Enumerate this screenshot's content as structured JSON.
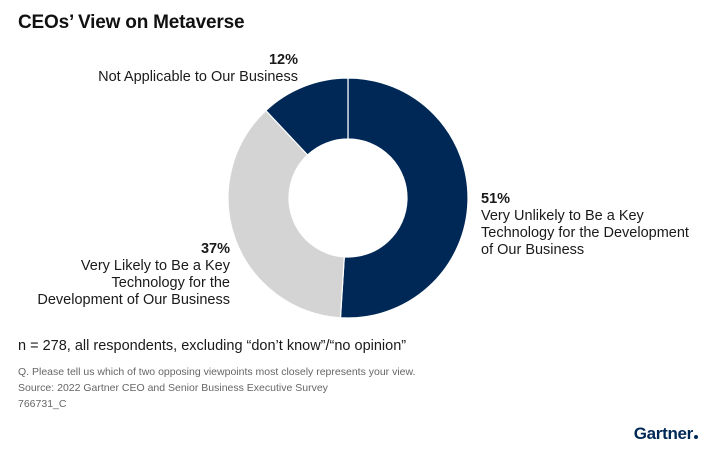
{
  "title": "CEOs’ View on Metaverse",
  "chart_data": {
    "type": "pie",
    "title": "CEOs’ View on Metaverse",
    "categories": [
      "Very Unlikely to Be a Key Technology for the Development of Our Business",
      "Very Likely to Be a Key Technology for the Development of Our Business",
      "Not Applicable to Our Business"
    ],
    "values": [
      51,
      37,
      12
    ],
    "value_labels": [
      "51%",
      "37%",
      "12%"
    ],
    "label_lines": [
      "Very Unlikely to Be a Key\nTechnology for the Development\nof Our Business",
      "Very Likely to Be a Key\nTechnology for the\nDevelopment of Our Business",
      "Not Applicable to Our Business"
    ],
    "colors": [
      "#002856",
      "#d4d4d4",
      "#002856"
    ],
    "donut": true,
    "start": "12 o'clock",
    "direction": "clockwise"
  },
  "note": "n = 278, all respondents, excluding “don’t know”/“no opinion”",
  "question": "Q. Please tell us which of two opposing viewpoints most closely represents your view.",
  "source": "Source: 2022 Gartner CEO and Senior Business Executive Survey",
  "code": "766731_C",
  "logo": "Gartner"
}
